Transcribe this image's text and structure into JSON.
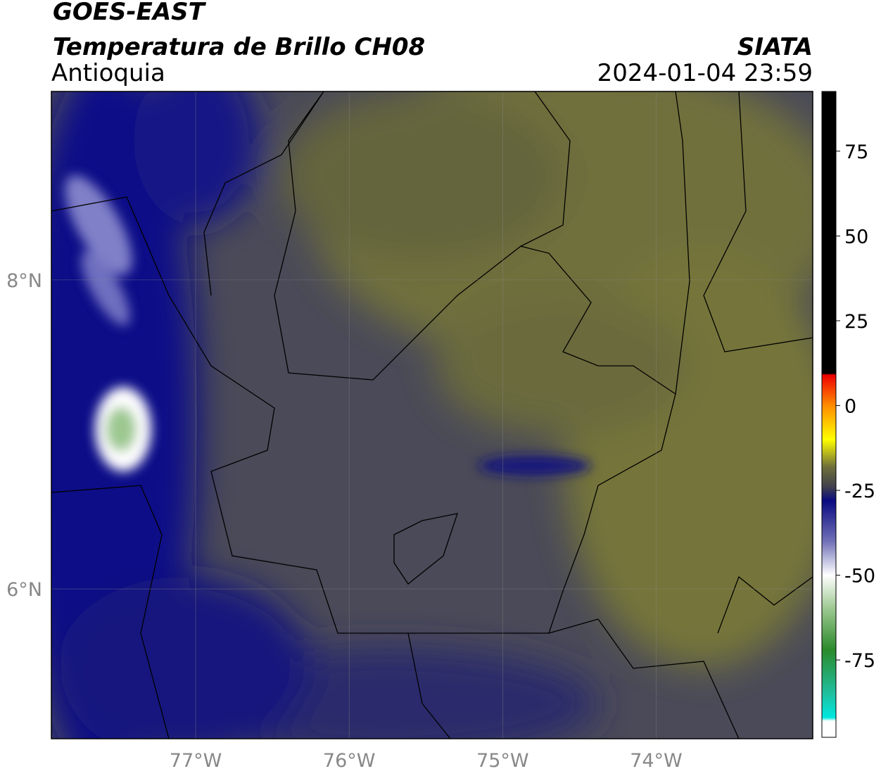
{
  "header": {
    "title": "GOES-EAST",
    "subtitle": "Temperatura de Brillo CH08",
    "region": "Antioquia",
    "source": "SIATA",
    "datetime": "2024-01-04 23:59"
  },
  "map": {
    "lon_range": [
      -77.94,
      -72.98
    ],
    "lat_range": [
      5.03,
      9.22
    ],
    "lon_ticks": [
      {
        "value": -77,
        "label": "77°W"
      },
      {
        "value": -76,
        "label": "76°W"
      },
      {
        "value": -75,
        "label": "75°W"
      },
      {
        "value": -74,
        "label": "74°W"
      }
    ],
    "lat_ticks": [
      {
        "value": 8,
        "label": "8°N"
      },
      {
        "value": 6,
        "label": "6°N"
      }
    ],
    "grid": true
  },
  "colorbar": {
    "range": [
      -97.8,
      92.6
    ],
    "ticks": [
      75,
      50,
      25,
      0,
      -25,
      -50,
      -75
    ],
    "stops": [
      {
        "value": -97.8,
        "color": "#ffffff"
      },
      {
        "value": -93,
        "color": "#ffffff"
      },
      {
        "value": -92,
        "color": "#00e8e0"
      },
      {
        "value": -85,
        "color": "#20c0a0"
      },
      {
        "value": -72,
        "color": "#2a8a2a"
      },
      {
        "value": -60,
        "color": "#9cc890"
      },
      {
        "value": -50,
        "color": "#ffffff"
      },
      {
        "value": -40,
        "color": "#7070b8"
      },
      {
        "value": -28,
        "color": "#0a0a80"
      },
      {
        "value": -24,
        "color": "#40404c"
      },
      {
        "value": -18,
        "color": "#70703a"
      },
      {
        "value": -10,
        "color": "#ffff00"
      },
      {
        "value": 0,
        "color": "#ff8c00"
      },
      {
        "value": 9,
        "color": "#ee0000"
      },
      {
        "value": 9.5,
        "color": "#000000"
      },
      {
        "value": 92.6,
        "color": "#000000"
      }
    ]
  }
}
